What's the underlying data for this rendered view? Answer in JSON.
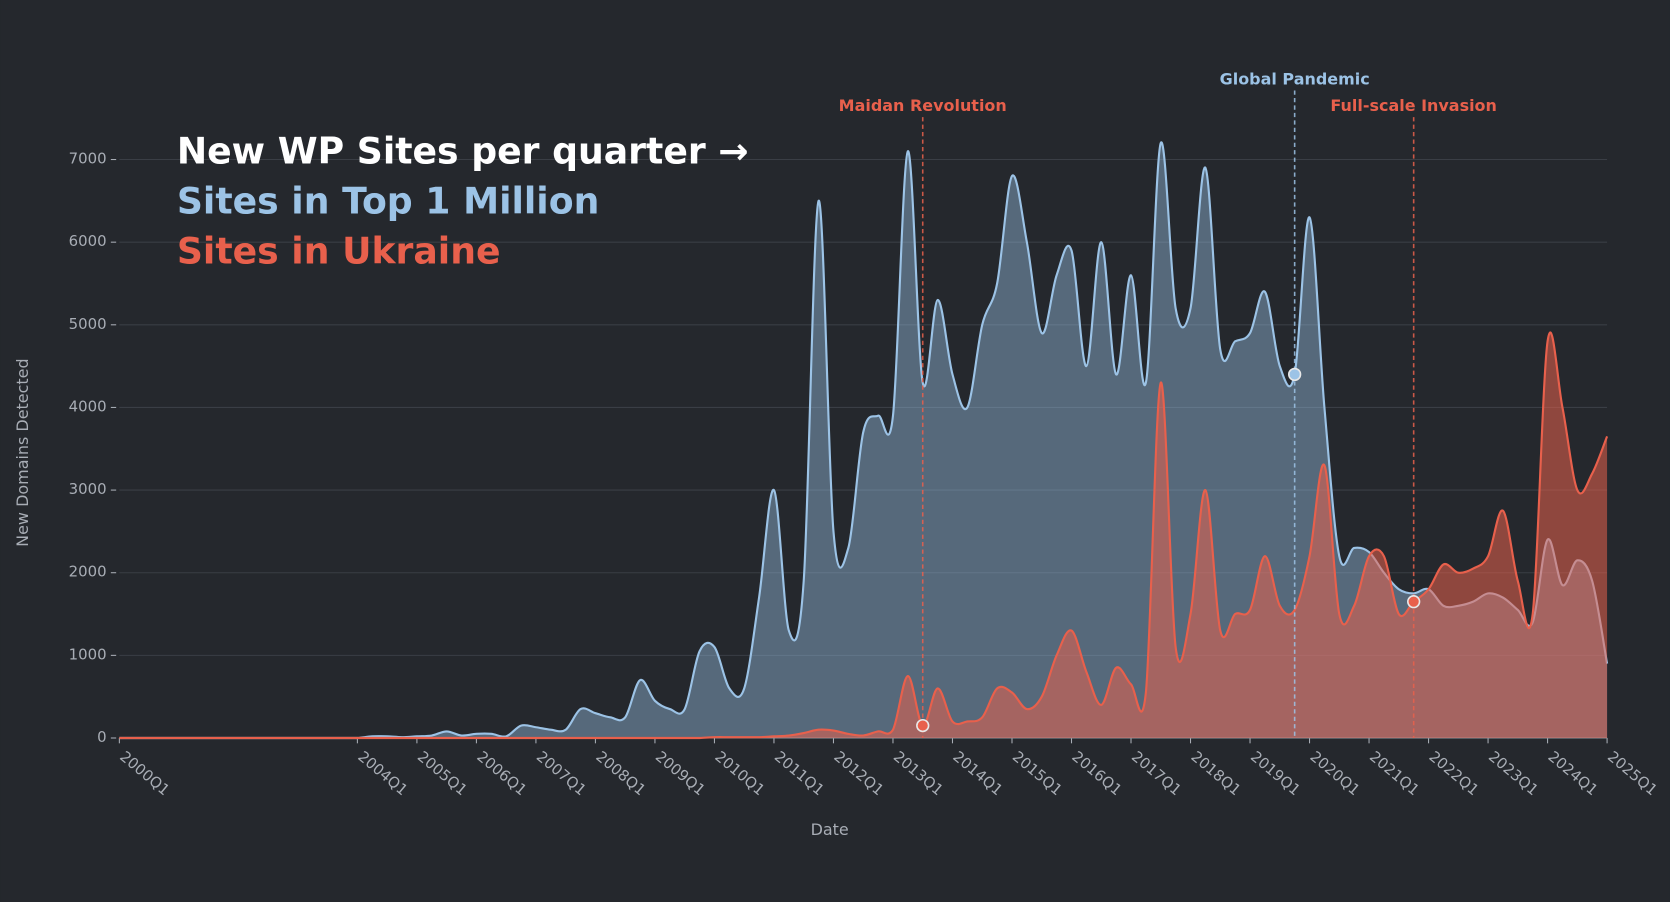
{
  "chart_data": {
    "type": "area",
    "title": "New WP Sites per quarter →",
    "x_label": "Date",
    "y_label": "New Domains Detected",
    "x": [
      "2000Q1",
      "2000Q2",
      "2000Q3",
      "2000Q4",
      "2001Q1",
      "2001Q2",
      "2001Q3",
      "2001Q4",
      "2002Q1",
      "2002Q2",
      "2002Q3",
      "2002Q4",
      "2003Q1",
      "2003Q2",
      "2003Q3",
      "2003Q4",
      "2004Q1",
      "2004Q2",
      "2004Q3",
      "2004Q4",
      "2005Q1",
      "2005Q2",
      "2005Q3",
      "2005Q4",
      "2006Q1",
      "2006Q2",
      "2006Q3",
      "2006Q4",
      "2007Q1",
      "2007Q2",
      "2007Q3",
      "2007Q4",
      "2008Q1",
      "2008Q2",
      "2008Q3",
      "2008Q4",
      "2009Q1",
      "2009Q2",
      "2009Q3",
      "2009Q4",
      "2010Q1",
      "2010Q2",
      "2010Q3",
      "2010Q4",
      "2011Q1",
      "2011Q2",
      "2011Q3",
      "2011Q4",
      "2012Q1",
      "2012Q2",
      "2012Q3",
      "2012Q4",
      "2013Q1",
      "2013Q2",
      "2013Q3",
      "2013Q4",
      "2014Q1",
      "2014Q2",
      "2014Q3",
      "2014Q4",
      "2015Q1",
      "2015Q2",
      "2015Q3",
      "2015Q4",
      "2016Q1",
      "2016Q2",
      "2016Q3",
      "2016Q4",
      "2017Q1",
      "2017Q2",
      "2017Q3",
      "2017Q4",
      "2018Q1",
      "2018Q2",
      "2018Q3",
      "2018Q4",
      "2019Q1",
      "2019Q2",
      "2019Q3",
      "2019Q4",
      "2020Q1",
      "2020Q2",
      "2020Q3",
      "2020Q4",
      "2021Q1",
      "2021Q2",
      "2021Q3",
      "2021Q4",
      "2022Q1",
      "2022Q2",
      "2022Q3",
      "2022Q4",
      "2023Q1",
      "2023Q2",
      "2023Q3",
      "2023Q4",
      "2024Q1",
      "2024Q2",
      "2024Q3",
      "2024Q4",
      "2025Q1"
    ],
    "xticks": [
      "2000Q1",
      "2004Q1",
      "2005Q1",
      "2006Q1",
      "2007Q1",
      "2008Q1",
      "2009Q1",
      "2010Q1",
      "2011Q1",
      "2012Q1",
      "2013Q1",
      "2014Q1",
      "2015Q1",
      "2016Q1",
      "2017Q1",
      "2018Q1",
      "2019Q1",
      "2020Q1",
      "2021Q1",
      "2022Q1",
      "2023Q1",
      "2024Q1",
      "2025Q1"
    ],
    "ylim": [
      0,
      7500
    ],
    "yticks": [
      0,
      1000,
      2000,
      3000,
      4000,
      5000,
      6000,
      7000
    ],
    "grid": true,
    "series": [
      {
        "name": "Sites in Top 1 Million",
        "color": "#9cc3e6",
        "values": [
          0,
          0,
          0,
          0,
          0,
          0,
          0,
          0,
          0,
          0,
          0,
          0,
          0,
          0,
          0,
          0,
          0,
          20,
          20,
          10,
          20,
          30,
          80,
          30,
          50,
          50,
          20,
          150,
          130,
          100,
          100,
          350,
          300,
          250,
          250,
          700,
          450,
          350,
          350,
          1050,
          1100,
          600,
          600,
          1700,
          3000,
          1300,
          1900,
          6500,
          2500,
          2300,
          3700,
          3900,
          3900,
          7100,
          4300,
          5300,
          4400,
          4000,
          5000,
          5500,
          6800,
          6000,
          4900,
          5600,
          5900,
          4500,
          6000,
          4400,
          5600,
          4300,
          7200,
          5200,
          5200,
          6900,
          4700,
          4800,
          4900,
          5400,
          4500,
          4400,
          6300,
          4000,
          2200,
          2300,
          2250,
          2000,
          1800,
          1750,
          1800,
          1600,
          1600,
          1650,
          1750,
          1700,
          1550,
          1400,
          2400,
          1850,
          2150,
          1900,
          900
        ]
      },
      {
        "name": "Sites in Ukraine",
        "color": "#e8604c",
        "values": [
          0,
          0,
          0,
          0,
          0,
          0,
          0,
          0,
          0,
          0,
          0,
          0,
          0,
          0,
          0,
          0,
          0,
          0,
          0,
          0,
          0,
          0,
          0,
          0,
          0,
          0,
          0,
          0,
          0,
          0,
          0,
          0,
          0,
          0,
          0,
          0,
          0,
          0,
          0,
          0,
          10,
          10,
          10,
          10,
          20,
          30,
          60,
          100,
          90,
          50,
          30,
          80,
          100,
          750,
          150,
          600,
          200,
          200,
          250,
          600,
          550,
          350,
          500,
          1000,
          1300,
          800,
          400,
          850,
          650,
          550,
          4300,
          1100,
          1500,
          3000,
          1300,
          1500,
          1550,
          2200,
          1600,
          1550,
          2200,
          3300,
          1500,
          1600,
          2200,
          2200,
          1500,
          1650,
          1800,
          2100,
          2000,
          2050,
          2200,
          2750,
          1900,
          1500,
          4800,
          4000,
          3000,
          3200,
          3650
        ]
      }
    ],
    "annotations": [
      {
        "text": "Maidan Revolution",
        "x": "2013Q3",
        "series": 1,
        "color": "#e8604c"
      },
      {
        "text": "Global Pandemic",
        "x": "2019Q4",
        "series": 0,
        "color": "#9cc3e6"
      },
      {
        "text": "Full-scale Invasion",
        "x": "2021Q4",
        "series": 1,
        "color": "#e8604c"
      }
    ]
  }
}
